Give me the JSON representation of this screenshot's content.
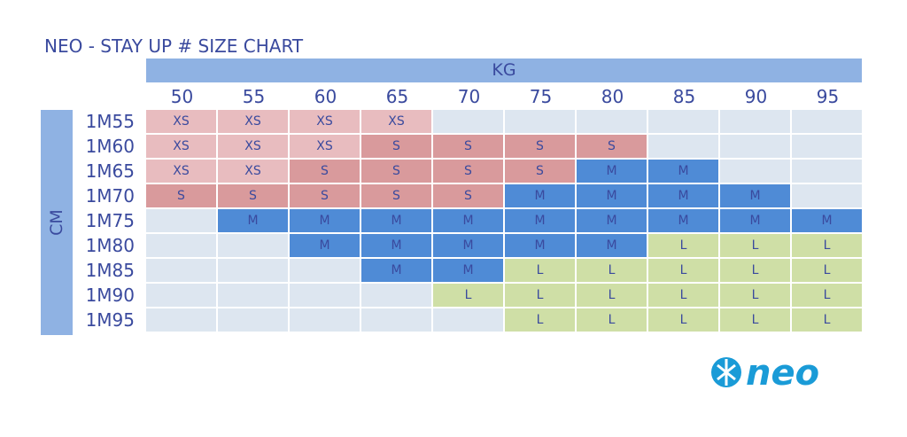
{
  "chart_data": {
    "type": "table",
    "title": "NEO - STAY UP # SIZE CHART",
    "xlabel": "KG",
    "ylabel": "CM",
    "columns": [
      "50",
      "55",
      "60",
      "65",
      "70",
      "75",
      "80",
      "85",
      "90",
      "95"
    ],
    "rows": [
      "1M55",
      "1M60",
      "1M65",
      "1M70",
      "1M75",
      "1M80",
      "1M85",
      "1M90",
      "1M95"
    ],
    "cells": [
      [
        "XS",
        "XS",
        "XS",
        "XS",
        "",
        "",
        "",
        "",
        "",
        ""
      ],
      [
        "XS",
        "XS",
        "XS",
        "S",
        "S",
        "S",
        "S",
        "",
        "",
        ""
      ],
      [
        "XS",
        "XS",
        "S",
        "S",
        "S",
        "S",
        "M",
        "M",
        "",
        ""
      ],
      [
        "S",
        "S",
        "S",
        "S",
        "S",
        "M",
        "M",
        "M",
        "M",
        ""
      ],
      [
        "",
        "M",
        "M",
        "M",
        "M",
        "M",
        "M",
        "M",
        "M",
        "M"
      ],
      [
        "",
        "",
        "M",
        "M",
        "M",
        "M",
        "M",
        "L",
        "L",
        "L"
      ],
      [
        "",
        "",
        "",
        "M",
        "M",
        "L",
        "L",
        "L",
        "L",
        "L"
      ],
      [
        "",
        "",
        "",
        "",
        "L",
        "L",
        "L",
        "L",
        "L",
        "L"
      ],
      [
        "",
        "",
        "",
        "",
        "",
        "L",
        "L",
        "L",
        "L",
        "L"
      ]
    ],
    "size_colors": {
      "XS": "#e8bcbf",
      "S": "#d99a9c",
      "M": "#4f8bd6",
      "L": "#cfdfa6",
      "empty": "#dde6f0"
    }
  },
  "brand": {
    "logo_text": "neo",
    "logo_color": "#1a9bd7"
  }
}
